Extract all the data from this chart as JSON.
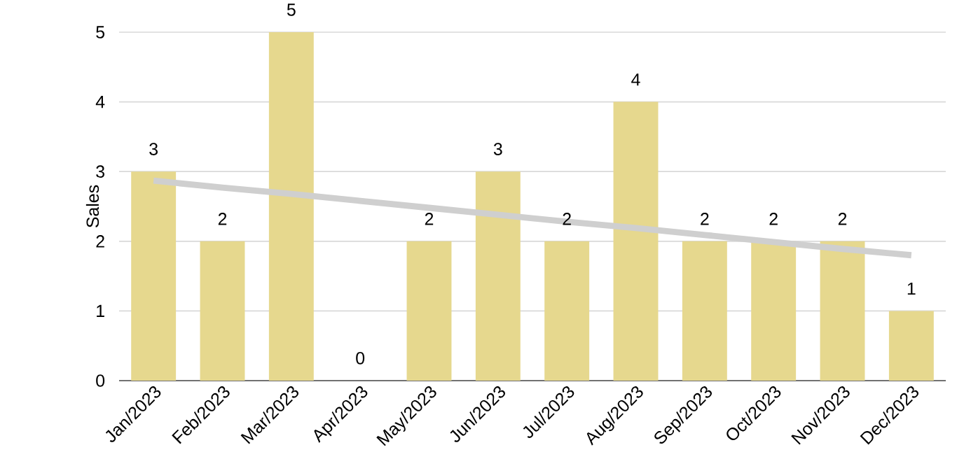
{
  "chart_data": {
    "type": "bar",
    "ylabel": "Sales",
    "categories": [
      "Jan/2023",
      "Feb/2023",
      "Mar/2023",
      "Apr/2023",
      "May/2023",
      "Jun/2023",
      "Jul/2023",
      "Aug/2023",
      "Sep/2023",
      "Oct/2023",
      "Nov/2023",
      "Dec/2023"
    ],
    "series": [
      {
        "color": "#e6d88e",
        "values": [
          3,
          2,
          5,
          0,
          2,
          3,
          2,
          4,
          2,
          2,
          2,
          1
        ],
        "value_labels": [
          "3",
          "2",
          "5",
          "0",
          "2",
          "3",
          "2",
          "4",
          "2",
          "2",
          "2",
          "1"
        ]
      },
      {
        "type": "line",
        "color": "#cfcfcf",
        "values": [
          2.87,
          2.77,
          2.68,
          2.58,
          2.48,
          2.38,
          2.28,
          2.19,
          2.09,
          1.99,
          1.89,
          1.8
        ]
      }
    ],
    "ylim": [
      0,
      5
    ],
    "yticks": [
      0,
      1,
      2,
      3,
      4,
      5
    ],
    "grid": "y"
  }
}
